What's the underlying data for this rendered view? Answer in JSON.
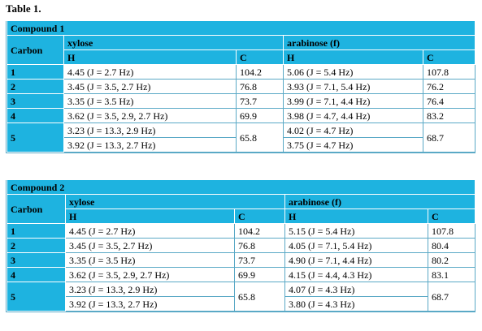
{
  "title": "Table 1.",
  "tables": [
    {
      "caption": "Compound 1",
      "carbon_header": "Carbon",
      "groups": [
        "xylose",
        "arabinose (f)"
      ],
      "subheaders": [
        "H",
        "C",
        "H",
        "C"
      ],
      "rows": [
        {
          "carbon": "1",
          "xh": [
            "4.45 (J = 2.7 Hz)"
          ],
          "xc": "104.2",
          "ah": [
            "5.06 (J = 5.4 Hz)"
          ],
          "ac": "107.8"
        },
        {
          "carbon": "2",
          "xh": [
            "3.45 (J = 3.5, 2.7 Hz)"
          ],
          "xc": "76.8",
          "ah": [
            "3.93 (J = 7.1, 5.4 Hz)"
          ],
          "ac": "76.2"
        },
        {
          "carbon": "3",
          "xh": [
            "3.35 (J = 3.5 Hz)"
          ],
          "xc": "73.7",
          "ah": [
            "3.99 (J = 7.1, 4.4 Hz)"
          ],
          "ac": "76.4"
        },
        {
          "carbon": "4",
          "xh": [
            "3.62 (J = 3.5, 2.9, 2.7 Hz)"
          ],
          "xc": "69.9",
          "ah": [
            "3.98 (J = 4.7, 4.4 Hz)"
          ],
          "ac": "83.2"
        },
        {
          "carbon": "5",
          "xh": [
            "3.23 (J = 13.3, 2.9 Hz)",
            "3.92 (J = 13.3, 2.7 Hz)"
          ],
          "xc": "65.8",
          "ah": [
            "4.02 (J = 4.7 Hz)",
            "3.75 (J = 4.7 Hz)"
          ],
          "ac": "68.7"
        }
      ]
    },
    {
      "caption": "Compound 2",
      "carbon_header": "Carbon",
      "groups": [
        "xylose",
        "arabinose (f)"
      ],
      "subheaders": [
        "H",
        "C",
        "H",
        "C"
      ],
      "rows": [
        {
          "carbon": "1",
          "xh": [
            "4.45 (J = 2.7 Hz)"
          ],
          "xc": "104.2",
          "ah": [
            "5.15 (J = 5.4 Hz)"
          ],
          "ac": "107.8"
        },
        {
          "carbon": "2",
          "xh": [
            "3.45 (J = 3.5, 2.7 Hz)"
          ],
          "xc": "76.8",
          "ah": [
            "4.05 (J = 7.1, 5.4 Hz)"
          ],
          "ac": "80.4"
        },
        {
          "carbon": "3",
          "xh": [
            "3.35 (J = 3.5 Hz)"
          ],
          "xc": "73.7",
          "ah": [
            "4.90 (J = 7.1, 4.4 Hz)"
          ],
          "ac": "80.2"
        },
        {
          "carbon": "4",
          "xh": [
            "3.62 (J = 3.5, 2.9, 2.7 Hz)"
          ],
          "xc": "69.9",
          "ah": [
            "4.15 (J = 4.4, 4.3 Hz)"
          ],
          "ac": "83.1"
        },
        {
          "carbon": "5",
          "xh": [
            "3.23 (J = 13.3, 2.9 Hz)",
            "3.92 (J = 13.3, 2.7 Hz)"
          ],
          "xc": "65.8",
          "ah": [
            "4.07 (J = 4.3 Hz)",
            "3.80 (J = 4.3 Hz)"
          ],
          "ac": "68.7"
        }
      ]
    }
  ]
}
